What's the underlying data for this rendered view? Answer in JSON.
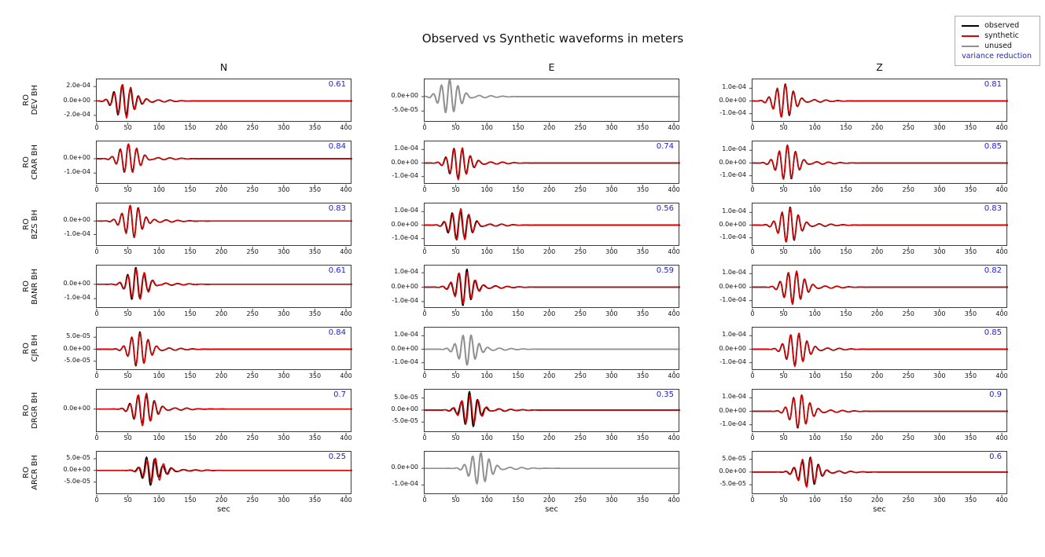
{
  "title": "Observed vs Synthetic waveforms in meters",
  "legend": {
    "items": [
      {
        "name": "observed",
        "label": "observed",
        "color": "#000000"
      },
      {
        "name": "synthetic",
        "label": "synthetic",
        "color": "#e00000"
      },
      {
        "name": "unused",
        "label": "unused",
        "color": "#909090"
      }
    ],
    "variance_label": "variance reduction",
    "variance_color": "#2222cc"
  },
  "chart_data": {
    "type": "line",
    "title": "Observed vs Synthetic waveforms in meters",
    "columns": [
      "N",
      "E",
      "Z"
    ],
    "xlabel": "sec",
    "x_range": [
      0,
      410
    ],
    "x_ticks": [
      0,
      50,
      100,
      150,
      200,
      250,
      300,
      350,
      400
    ],
    "series_names": [
      "observed",
      "synthetic"
    ],
    "wave_freq_hz": 0.075,
    "wave_sigma_sec": 14,
    "rows": [
      {
        "label_lines": [
          "RO",
          "DEV BH"
        ],
        "cells": [
          {
            "component": "N",
            "used": true,
            "variance_reduction": "0.61",
            "ylim": [
              -0.0003,
              0.0003
            ],
            "yticks": [
              {
                "label": "2.0e-04",
                "value": 0.0002
              },
              {
                "label": "0.0e+00",
                "value": 0
              },
              {
                "label": "-2.0e-04",
                "value": -0.0002
              }
            ],
            "t0": 45,
            "amp": 0.00024
          },
          {
            "component": "E",
            "used": false,
            "variance_reduction": null,
            "ylim": [
              -9e-05,
              6e-05
            ],
            "yticks": [
              {
                "label": "0.0e+00",
                "value": 0
              },
              {
                "label": "-5.0e-05",
                "value": -5e-05
              }
            ],
            "t0": 40,
            "amp": 6e-05
          },
          {
            "component": "Z",
            "used": true,
            "variance_reduction": "0.81",
            "ylim": [
              -0.00017,
              0.00017
            ],
            "yticks": [
              {
                "label": "1.0e-04",
                "value": 0.0001
              },
              {
                "label": "0.0e+00",
                "value": 0
              },
              {
                "label": "-1.0e-04",
                "value": -0.0001
              }
            ],
            "t0": 50,
            "amp": 0.000135
          }
        ]
      },
      {
        "label_lines": [
          "RO",
          "CRAR BH"
        ],
        "cells": [
          {
            "component": "N",
            "used": true,
            "variance_reduction": "0.84",
            "ylim": [
              -0.00018,
              0.00012
            ],
            "yticks": [
              {
                "label": "0.0e+00",
                "value": 0
              },
              {
                "label": "-1.0e-04",
                "value": -0.0001
              }
            ],
            "t0": 52,
            "amp": 0.000105
          },
          {
            "component": "E",
            "used": true,
            "variance_reduction": "0.74",
            "ylim": [
              -0.00016,
              0.00016
            ],
            "yticks": [
              {
                "label": "1.0e-04",
                "value": 0.0001
              },
              {
                "label": "0.0e+00",
                "value": 0
              },
              {
                "label": "-1.0e-04",
                "value": -0.0001
              }
            ],
            "t0": 55,
            "amp": 0.000125
          },
          {
            "component": "Z",
            "used": true,
            "variance_reduction": "0.85",
            "ylim": [
              -0.00017,
              0.00017
            ],
            "yticks": [
              {
                "label": "1.0e-04",
                "value": 0.0001
              },
              {
                "label": "0.0e+00",
                "value": 0
              },
              {
                "label": "-1.0e-04",
                "value": -0.0001
              }
            ],
            "t0": 55,
            "amp": 0.00014
          }
        ]
      },
      {
        "label_lines": [
          "RO",
          "BZS BH"
        ],
        "cells": [
          {
            "component": "N",
            "used": true,
            "variance_reduction": "0.83",
            "ylim": [
              -0.00019,
              0.00013
            ],
            "yticks": [
              {
                "label": "0.0e+00",
                "value": 0
              },
              {
                "label": "-1.0e-04",
                "value": -0.0001
              }
            ],
            "t0": 57,
            "amp": 0.00012
          },
          {
            "component": "E",
            "used": true,
            "variance_reduction": "0.56",
            "ylim": [
              -0.00016,
              0.00016
            ],
            "yticks": [
              {
                "label": "1.0e-04",
                "value": 0.0001
              },
              {
                "label": "0.0e+00",
                "value": 0
              },
              {
                "label": "-1.0e-04",
                "value": -0.0001
              }
            ],
            "t0": 57,
            "amp": 0.000125
          },
          {
            "component": "Z",
            "used": true,
            "variance_reduction": "0.83",
            "ylim": [
              -0.00017,
              0.00017
            ],
            "yticks": [
              {
                "label": "1.0e-04",
                "value": 0.0001
              },
              {
                "label": "0.0e+00",
                "value": 0
              },
              {
                "label": "-1.0e-04",
                "value": -0.0001
              }
            ],
            "t0": 58,
            "amp": 0.00014
          }
        ]
      },
      {
        "label_lines": [
          "RO",
          "BANR BH"
        ],
        "cells": [
          {
            "component": "N",
            "used": true,
            "variance_reduction": "0.61",
            "ylim": [
              -0.00017,
              0.00013
            ],
            "yticks": [
              {
                "label": "0.0e+00",
                "value": 0
              },
              {
                "label": "-1.0e-04",
                "value": -0.0001
              }
            ],
            "t0": 65,
            "amp": 0.00011
          },
          {
            "component": "E",
            "used": true,
            "variance_reduction": "0.59",
            "ylim": [
              -0.00015,
              0.00015
            ],
            "yticks": [
              {
                "label": "1.0e-04",
                "value": 0.0001
              },
              {
                "label": "0.0e+00",
                "value": 0
              },
              {
                "label": "-1.0e-04",
                "value": -0.0001
              }
            ],
            "t0": 63,
            "amp": 0.000115
          },
          {
            "component": "Z",
            "used": true,
            "variance_reduction": "0.82",
            "ylim": [
              -0.00016,
              0.00016
            ],
            "yticks": [
              {
                "label": "1.0e-04",
                "value": 0.0001
              },
              {
                "label": "0.0e+00",
                "value": 0
              },
              {
                "label": "-1.0e-04",
                "value": -0.0001
              }
            ],
            "t0": 66,
            "amp": 0.00013
          }
        ]
      },
      {
        "label_lines": [
          "RO",
          "CJR BH"
        ],
        "cells": [
          {
            "component": "N",
            "used": true,
            "variance_reduction": "0.84",
            "ylim": [
              -9e-05,
              9e-05
            ],
            "yticks": [
              {
                "label": "5.0e-05",
                "value": 5e-05
              },
              {
                "label": "0.0e+00",
                "value": 0
              },
              {
                "label": "-5.0e-05",
                "value": -5e-05
              }
            ],
            "t0": 68,
            "amp": 7e-05
          },
          {
            "component": "E",
            "used": false,
            "variance_reduction": null,
            "ylim": [
              -0.00016,
              0.00016
            ],
            "yticks": [
              {
                "label": "1.0e-04",
                "value": 0.0001
              },
              {
                "label": "0.0e+00",
                "value": 0
              },
              {
                "label": "-1.0e-04",
                "value": -0.0001
              }
            ],
            "t0": 68,
            "amp": 0.000115
          },
          {
            "component": "Z",
            "used": true,
            "variance_reduction": "0.85",
            "ylim": [
              -0.00016,
              0.00016
            ],
            "yticks": [
              {
                "label": "1.0e-04",
                "value": 0.0001
              },
              {
                "label": "0.0e+00",
                "value": 0
              },
              {
                "label": "-1.0e-04",
                "value": -0.0001
              }
            ],
            "t0": 70,
            "amp": 0.00013
          }
        ]
      },
      {
        "label_lines": [
          "RO",
          "DRGR BH"
        ],
        "cells": [
          {
            "component": "N",
            "used": true,
            "variance_reduction": "0.7",
            "ylim": [
              -0.00016,
              0.00013
            ],
            "yticks": [
              {
                "label": "0.0e+00",
                "value": 0
              }
            ],
            "t0": 75,
            "amp": 0.000115
          },
          {
            "component": "E",
            "used": true,
            "variance_reduction": "0.35",
            "ylim": [
              -9.5e-05,
              8.5e-05
            ],
            "yticks": [
              {
                "label": "5.0e-05",
                "value": 5e-05
              },
              {
                "label": "0.0e+00",
                "value": 0
              },
              {
                "label": "-5.0e-05",
                "value": -5e-05
              }
            ],
            "t0": 72,
            "amp": 6.2e-05
          },
          {
            "component": "Z",
            "used": true,
            "variance_reduction": "0.9",
            "ylim": [
              -0.00016,
              0.00016
            ],
            "yticks": [
              {
                "label": "1.0e-04",
                "value": 0.0001
              },
              {
                "label": "0.0e+00",
                "value": 0
              },
              {
                "label": "-1.0e-04",
                "value": -0.0001
              }
            ],
            "t0": 76,
            "amp": 0.000125
          }
        ]
      },
      {
        "label_lines": [
          "RO",
          "ARCR BH"
        ],
        "cells": [
          {
            "component": "N",
            "used": true,
            "variance_reduction": "0.25",
            "ylim": [
              -0.000105,
              8e-05
            ],
            "yticks": [
              {
                "label": "5.0e-05",
                "value": 5e-05
              },
              {
                "label": "0.0e+00",
                "value": 0
              },
              {
                "label": "-5.0e-05",
                "value": -5e-05
              }
            ],
            "t0": 90,
            "amp": 5.5e-05
          },
          {
            "component": "E",
            "used": false,
            "variance_reduction": null,
            "ylim": [
              -0.00016,
              0.0001
            ],
            "yticks": [
              {
                "label": "0.0e+00",
                "value": 0
              },
              {
                "label": "-1.0e-04",
                "value": -0.0001
              }
            ],
            "t0": 88,
            "amp": 0.0001
          },
          {
            "component": "Z",
            "used": true,
            "variance_reduction": "0.6",
            "ylim": [
              -9e-05,
              8e-05
            ],
            "yticks": [
              {
                "label": "5.0e-05",
                "value": 5e-05
              },
              {
                "label": "0.0e+00",
                "value": 0
              },
              {
                "label": "-5.0e-05",
                "value": -5e-05
              }
            ],
            "t0": 88,
            "amp": 6e-05
          }
        ]
      }
    ]
  }
}
